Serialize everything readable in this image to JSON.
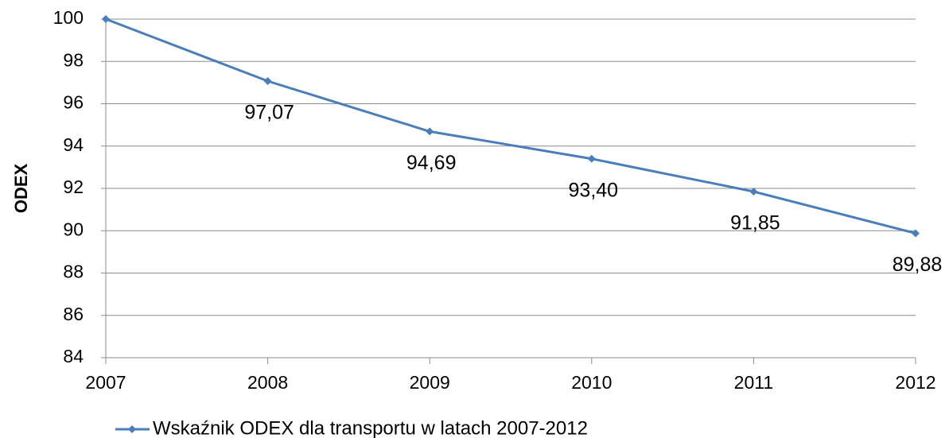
{
  "chart_data": {
    "type": "line",
    "x": [
      2007,
      2008,
      2009,
      2010,
      2011,
      2012
    ],
    "series": [
      {
        "name": "Wskaźnik ODEX dla transportu w latach 2007-2012",
        "color": "#4a7ebb",
        "values": [
          100,
          97.07,
          94.69,
          93.4,
          91.85,
          89.88
        ],
        "value_labels": [
          null,
          "97,07",
          "94,69",
          "93,40",
          "91,85",
          "89,88"
        ]
      }
    ],
    "ylabel": "ODEX",
    "xlim": [
      2007,
      2012
    ],
    "xticks": [
      2007,
      2008,
      2009,
      2010,
      2011,
      2012
    ],
    "ylim": [
      84,
      100
    ],
    "yticks": [
      84,
      86,
      88,
      90,
      92,
      94,
      96,
      98,
      100
    ],
    "grid": true,
    "legend": "bottom"
  }
}
